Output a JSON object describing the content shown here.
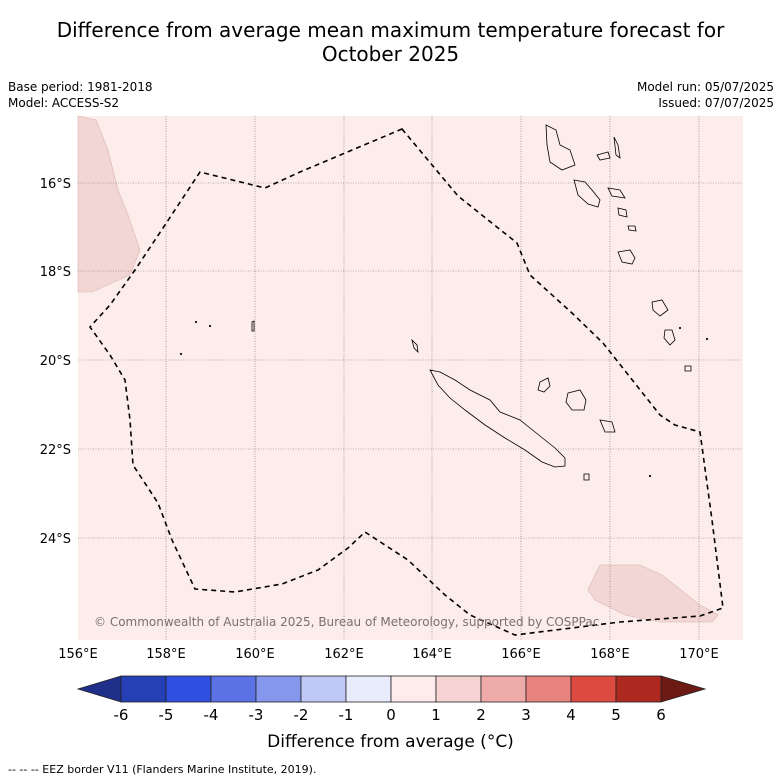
{
  "title_line1": "Difference from average mean maximum temperature forecast for",
  "title_line2": "October 2025",
  "base_period": "Base period: 1981-2018",
  "model": "Model: ACCESS-S2",
  "model_run": "Model run: 05/07/2025",
  "issued": "Issued: 07/07/2025",
  "lat_labels": [
    "16°S",
    "18°S",
    "20°S",
    "22°S",
    "24°S"
  ],
  "lon_labels": [
    "156°E",
    "158°E",
    "160°E",
    "162°E",
    "164°E",
    "166°E",
    "168°E",
    "170°E"
  ],
  "copyright": "© Commonwealth of Australia 2025, Bureau of Meteorology, supported by COSPPac",
  "colorbar": {
    "ticks": [
      "-6",
      "-5",
      "-4",
      "-3",
      "-2",
      "-1",
      "0",
      "1",
      "2",
      "3",
      "4",
      "5",
      "6"
    ],
    "colors": [
      "#1f2f8a",
      "#2540b5",
      "#2f4fe0",
      "#5a72e6",
      "#8497ec",
      "#c0c8f5",
      "#e9ecfb",
      "#fdeceb",
      "#f6d4d3",
      "#efaba8",
      "#e8847d",
      "#dd4a3f",
      "#ae2a20",
      "#6e1a14"
    ],
    "title": "Difference from average (",
    "unit": "°C)"
  },
  "footnote": "-- -- -- EEZ border V11 (Flanders Marine Institute, 2019).",
  "map_colors": {
    "background": "#fcecea",
    "warm_patch": "#f2d6d4",
    "grid": "#7a6a6a"
  }
}
